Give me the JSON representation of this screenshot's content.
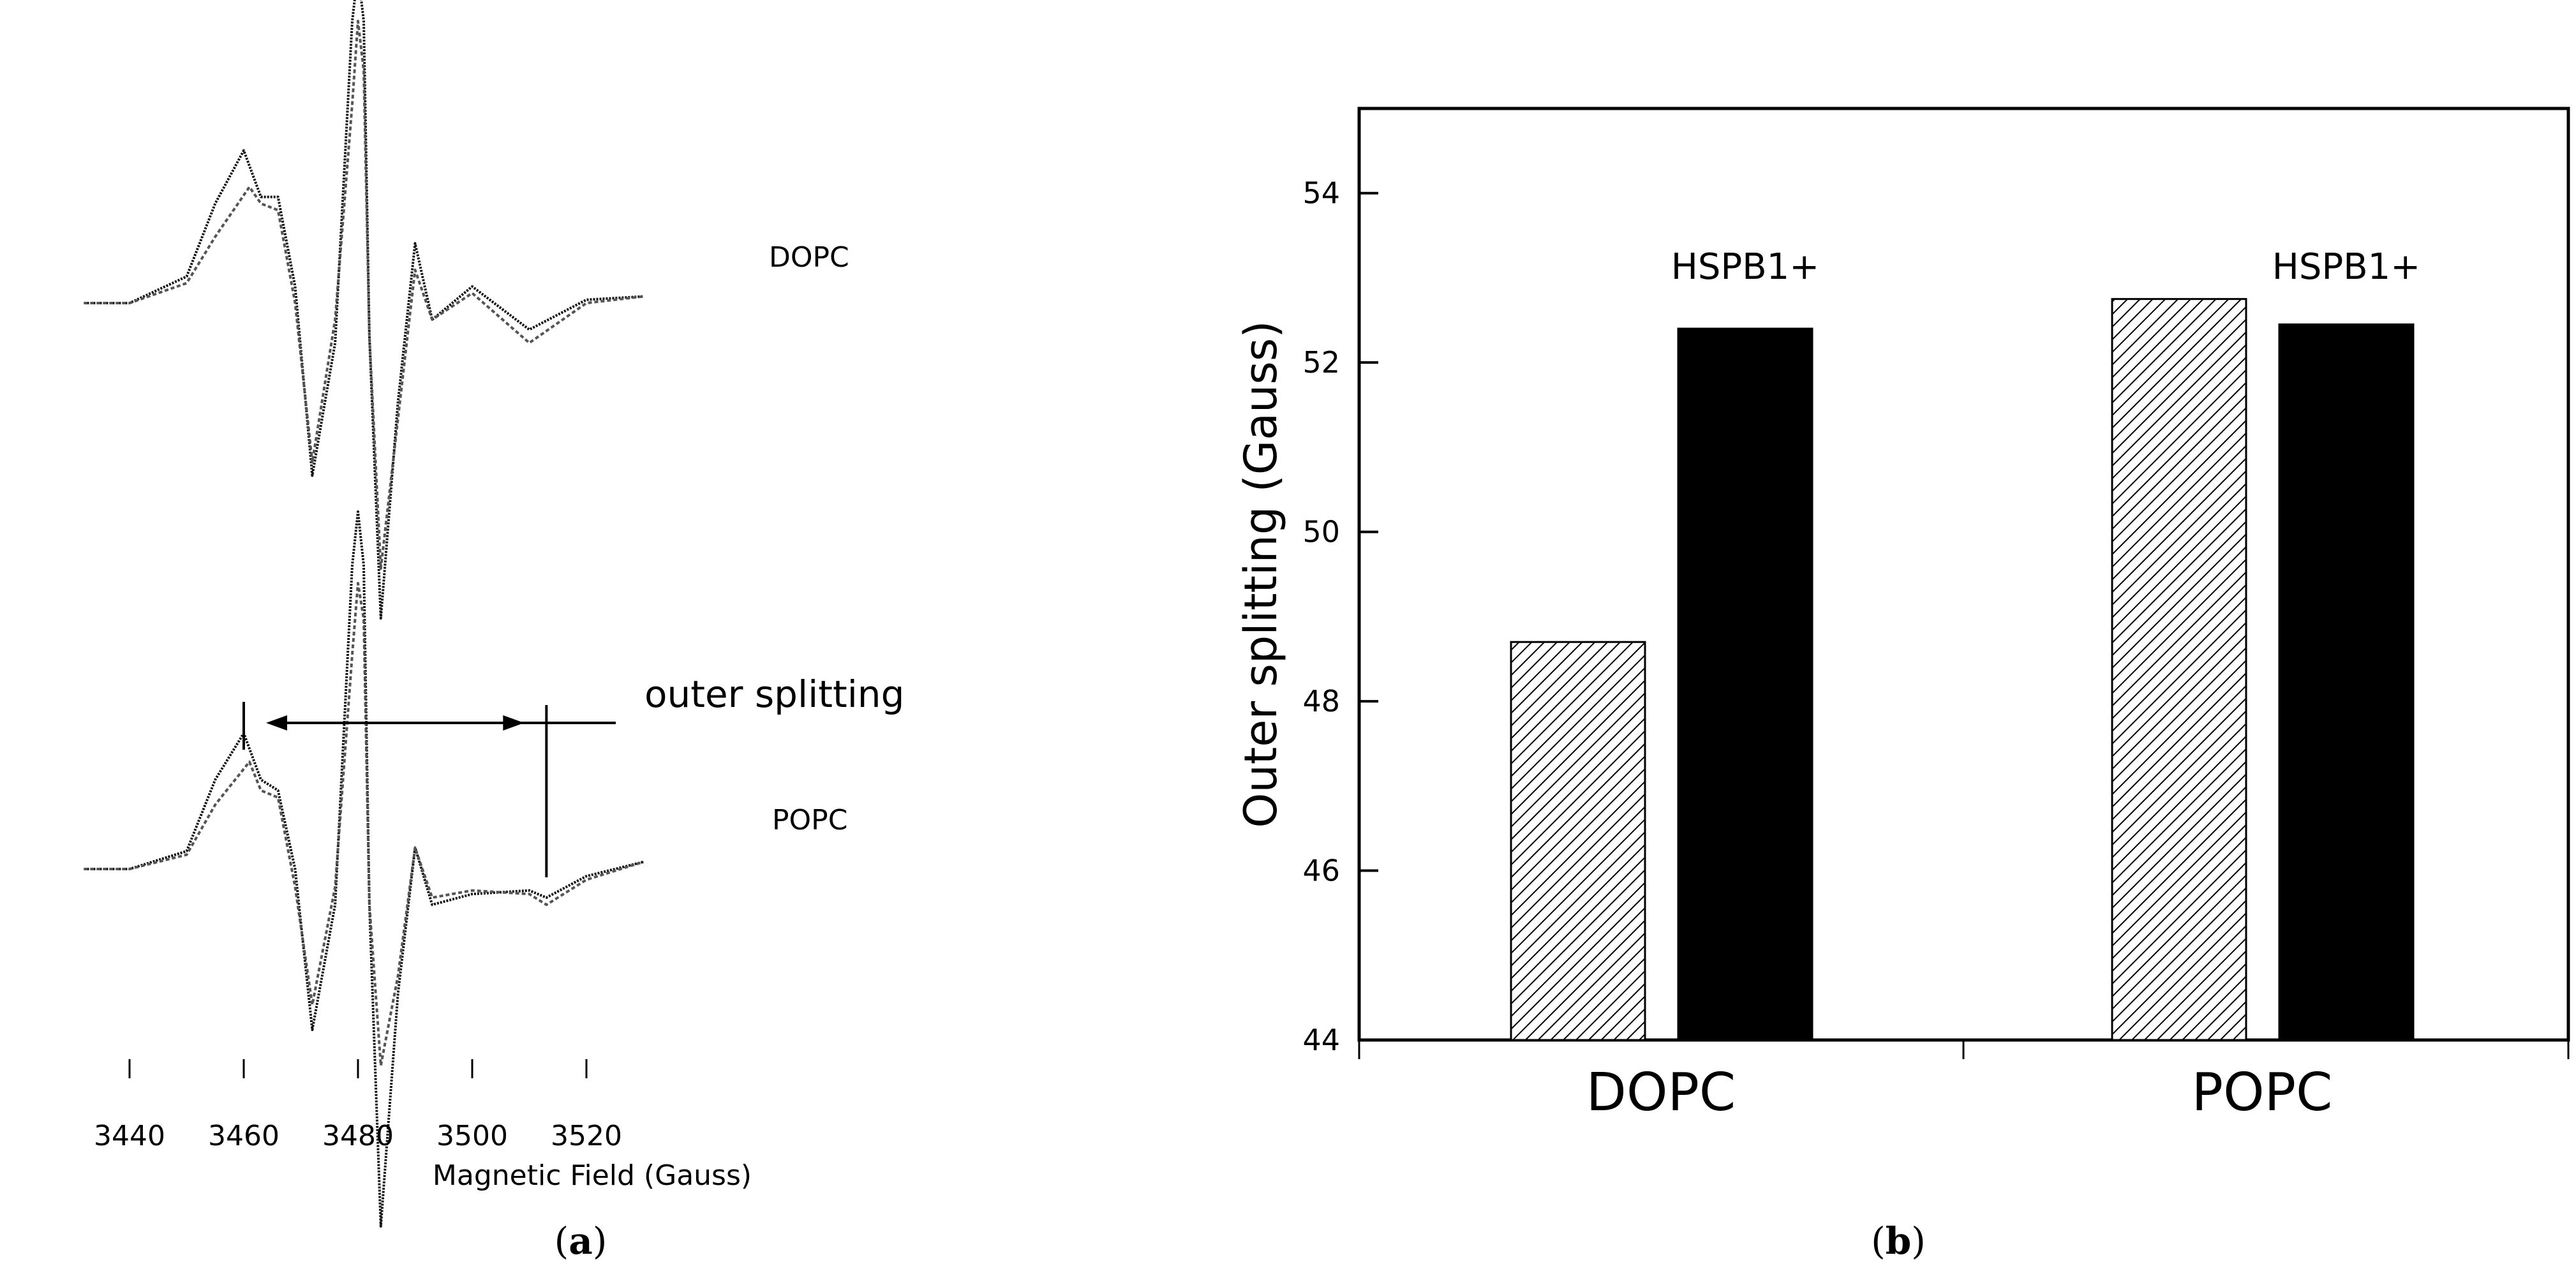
{
  "panels": {
    "a": {
      "label": "(a)",
      "label_letter": "a"
    },
    "b": {
      "label": "(b)",
      "label_letter": "b"
    }
  },
  "chart_data": [
    {
      "type": "line",
      "xlabel": "Magnetic Field (Gauss)",
      "x_ticks": [
        3440,
        3460,
        3480,
        3500,
        3520
      ],
      "xlim": [
        3430,
        3530
      ],
      "grid": false,
      "annotations": {
        "spectrum_top_label": "DOPC",
        "spectrum_bottom_label": "POPC",
        "splitting_label": "outer splitting",
        "splitting_markers_gauss": [
          3460,
          3513
        ]
      },
      "series": [
        {
          "x": [
            3432,
            3440,
            3450,
            3455,
            3460,
            3463,
            3466,
            3469,
            3472,
            3476,
            3479,
            3480,
            3481,
            3482,
            3484,
            3487,
            3490,
            3493,
            3500,
            3510,
            3520,
            3530
          ],
          "y": [
            0,
            0,
            0.08,
            0.3,
            0.46,
            0.32,
            0.32,
            0.05,
            -0.52,
            -0.12,
            0.85,
            1.0,
            0.85,
            -0.1,
            -0.95,
            -0.3,
            0.18,
            -0.05,
            0.05,
            -0.08,
            0.01,
            0.02
          ]
        },
        {
          "x": [
            3432,
            3440,
            3450,
            3455,
            3461,
            3463,
            3466,
            3469,
            3472,
            3476,
            3479,
            3480,
            3481,
            3482,
            3484,
            3487,
            3490,
            3493,
            3500,
            3510,
            3520,
            3530
          ],
          "y": [
            0,
            0,
            0.06,
            0.2,
            0.35,
            0.3,
            0.28,
            0.0,
            -0.48,
            -0.05,
            0.6,
            0.85,
            0.7,
            -0.1,
            -0.8,
            -0.35,
            0.1,
            -0.05,
            0.03,
            -0.12,
            0.0,
            0.02
          ]
        },
        {
          "x": [
            3432,
            3440,
            3450,
            3455,
            3460,
            3463,
            3466,
            3469,
            3472,
            3476,
            3479,
            3480,
            3481,
            3482,
            3484,
            3487,
            3490,
            3493,
            3500,
            3510,
            3513,
            3520,
            3530
          ],
          "y": [
            0,
            0,
            0.05,
            0.25,
            0.38,
            0.25,
            0.22,
            0.0,
            -0.45,
            -0.1,
            0.85,
            1.0,
            0.85,
            -0.1,
            -1.0,
            -0.35,
            0.06,
            -0.1,
            -0.07,
            -0.06,
            -0.08,
            -0.02,
            0.02
          ]
        },
        {
          "x": [
            3432,
            3440,
            3450,
            3455,
            3461,
            3463,
            3466,
            3469,
            3472,
            3476,
            3479,
            3480,
            3481,
            3482,
            3484,
            3487,
            3490,
            3493,
            3500,
            3510,
            3513,
            3520,
            3530
          ],
          "y": [
            0,
            0,
            0.04,
            0.18,
            0.3,
            0.22,
            0.2,
            -0.05,
            -0.38,
            -0.05,
            0.6,
            0.8,
            0.7,
            -0.1,
            -0.55,
            -0.3,
            0.06,
            -0.08,
            -0.06,
            -0.07,
            -0.1,
            -0.03,
            0.02
          ]
        }
      ]
    },
    {
      "type": "bar",
      "ylabel": "Outer splitting (Gauss)",
      "ylim": [
        44,
        55
      ],
      "y_ticks": [
        44,
        46,
        48,
        50,
        52,
        54
      ],
      "categories": [
        "DOPC",
        "POPC"
      ],
      "grid": false,
      "bar_annotation": "HSPB1+",
      "series": [
        {
          "values": [
            48.7,
            52.75
          ],
          "pattern": "hatched"
        },
        {
          "values": [
            52.4,
            52.45
          ],
          "pattern": "solid"
        }
      ]
    }
  ]
}
